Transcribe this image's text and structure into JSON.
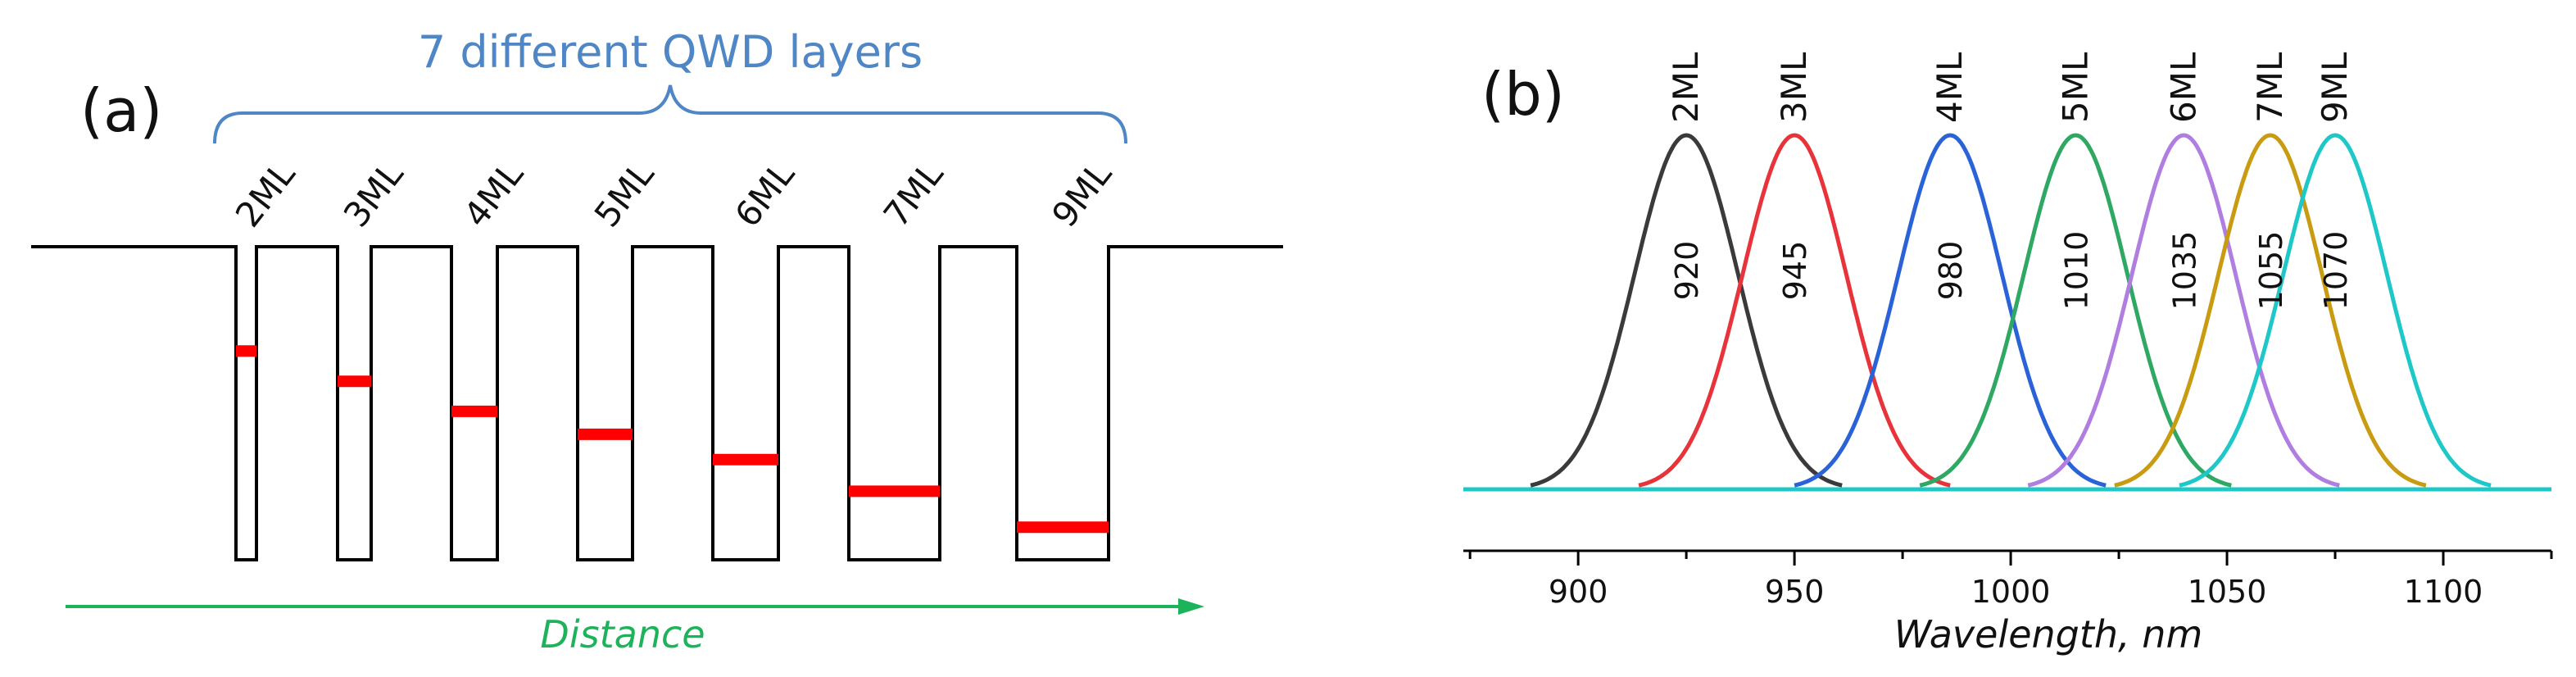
{
  "panel_a": {
    "label": "(a)",
    "brace_label": "7 different QWD layers",
    "distance_label": "Distance",
    "wells": [
      {
        "label": "2ML",
        "level": 0.667
      },
      {
        "label": "3ML",
        "level": 0.57
      },
      {
        "label": "4ML",
        "level": 0.474
      },
      {
        "label": "5ML",
        "level": 0.401
      },
      {
        "label": "6ML",
        "level": 0.32
      },
      {
        "label": "7ML",
        "level": 0.219
      },
      {
        "label": "9ML",
        "level": 0.104
      }
    ],
    "colors": {
      "well": "#000000",
      "level": "#ff0000",
      "brace": "#4f86c6",
      "arrow": "#1db35a"
    }
  },
  "panel_b": {
    "label": "(b)",
    "colors": {
      "baseline": "#1ec8c8"
    }
  },
  "chart_data": {
    "type": "line",
    "xlabel": "Wavelength, nm",
    "ylabel": "",
    "xlim": [
      878,
      1125
    ],
    "ylim": [
      0,
      1
    ],
    "xticks": [
      900,
      950,
      1000,
      1050,
      1100
    ],
    "grid": false,
    "series": [
      {
        "name": "2ML",
        "peak_label": "920",
        "center": 925,
        "sigma": 12,
        "color": "#3a3a3a"
      },
      {
        "name": "3ML",
        "peak_label": "945",
        "center": 950,
        "sigma": 12,
        "color": "#e8333a"
      },
      {
        "name": "4ML",
        "peak_label": "980",
        "center": 986,
        "sigma": 12,
        "color": "#2a62d8"
      },
      {
        "name": "5ML",
        "peak_label": "1010",
        "center": 1015,
        "sigma": 12,
        "color": "#2ea863"
      },
      {
        "name": "6ML",
        "peak_label": "1035",
        "center": 1040,
        "sigma": 12,
        "color": "#b07ee0"
      },
      {
        "name": "7ML",
        "peak_label": "1055",
        "center": 1060,
        "sigma": 12,
        "color": "#c89b10"
      },
      {
        "name": "9ML",
        "peak_label": "1070",
        "center": 1075,
        "sigma": 12,
        "color": "#1ec8c8"
      }
    ]
  }
}
